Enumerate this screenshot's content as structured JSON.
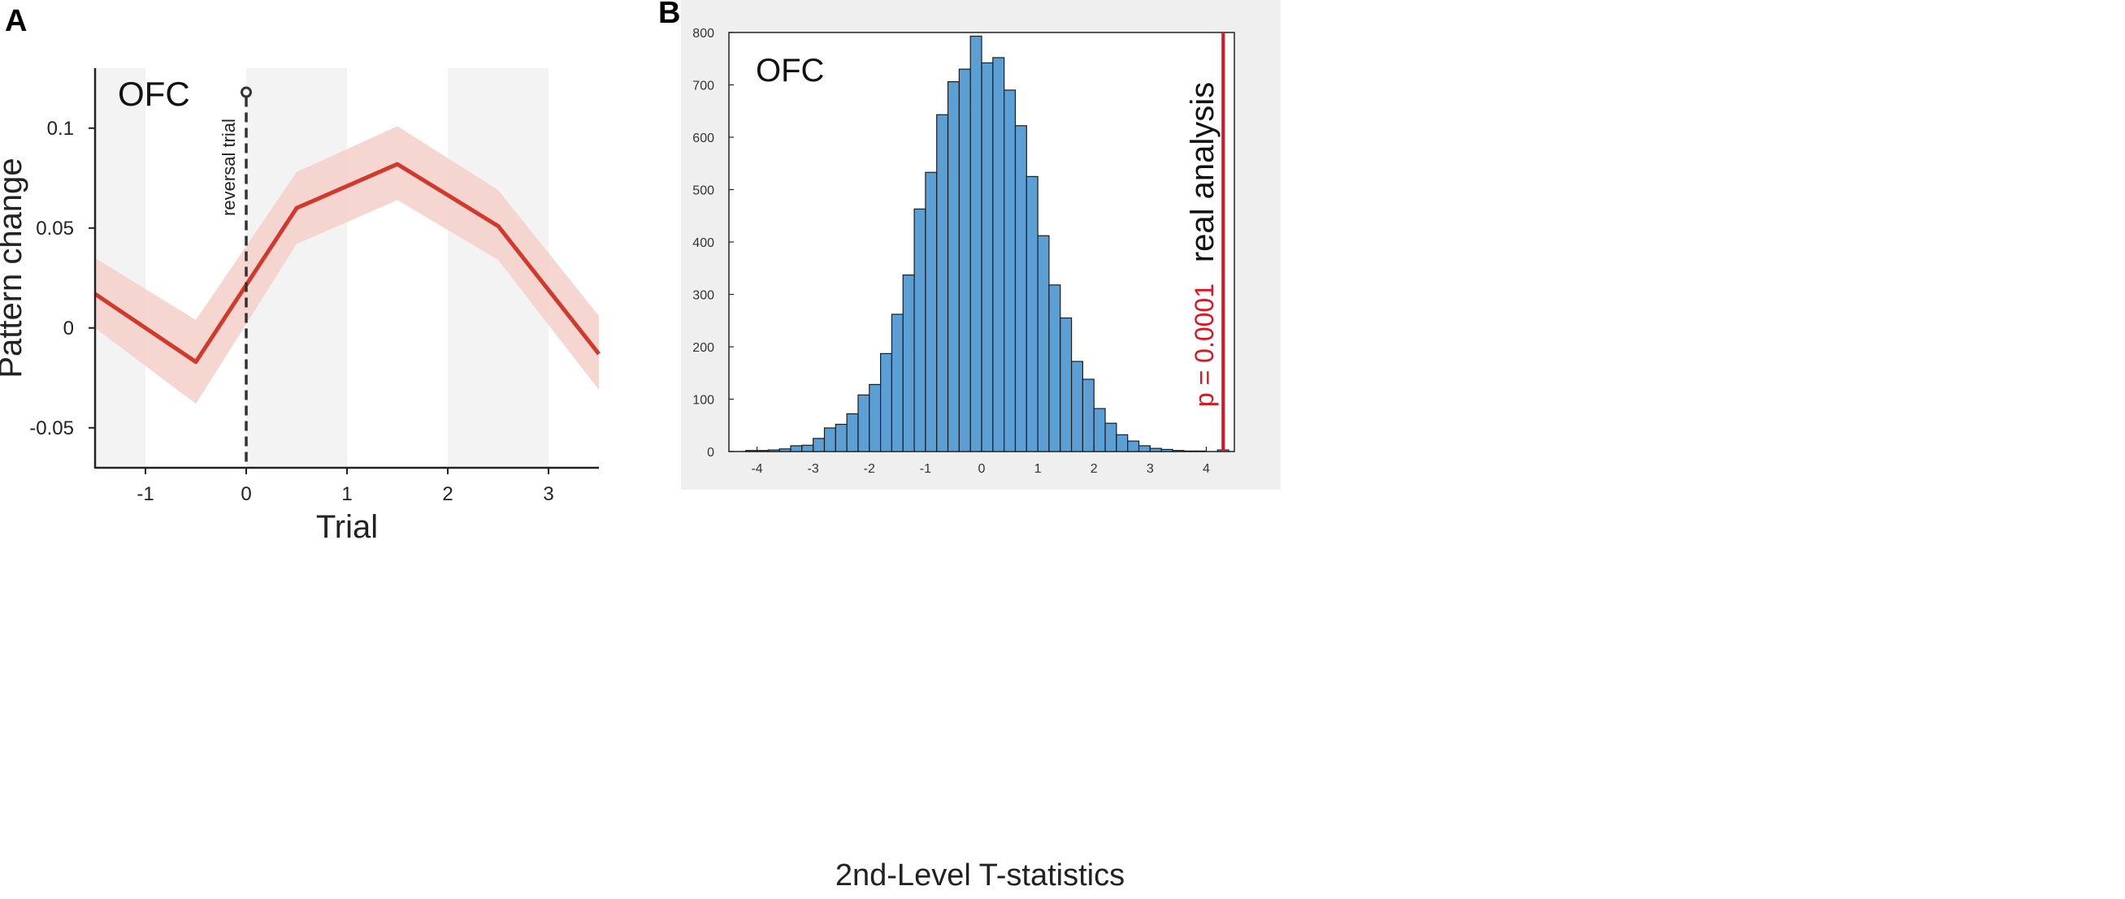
{
  "panels": {
    "a_label": "A",
    "b_label": "B"
  },
  "colors": {
    "line": "#d0392b",
    "ci_band": "#f5cfc9",
    "shade": "#f3f3f3",
    "bar_fill": "#5b9fd4",
    "bar_edge": "#1c1c1c",
    "real_line": "#e0141e",
    "panel_b_bg": "#efefef"
  },
  "chart_data": [
    {
      "type": "line",
      "panel": "A",
      "title": "",
      "annotation": "OFC",
      "xlabel": "Trial",
      "ylabel": "Pattern change",
      "xlim": [
        -1.5,
        3.5
      ],
      "ylim": [
        -0.07,
        0.13
      ],
      "xticks": [
        -1,
        0,
        1,
        2,
        3
      ],
      "xtick_labels": [
        "-1",
        "0",
        "1",
        "2",
        "3"
      ],
      "yticks": [
        -0.05,
        0,
        0.05,
        0.1
      ],
      "ytick_labels": [
        "-0.05",
        "0",
        "0.05",
        "0.1"
      ],
      "shaded_x_ranges": [
        [
          -1.5,
          -1
        ],
        [
          0,
          1
        ],
        [
          2,
          3
        ]
      ],
      "series": [
        {
          "name": "Pattern change",
          "x": [
            -1.5,
            -0.5,
            0.5,
            1.5,
            2.5,
            3.5
          ],
          "y": [
            0.017,
            -0.017,
            0.06,
            0.082,
            0.051,
            -0.013
          ],
          "upper": [
            0.035,
            0.004,
            0.078,
            0.101,
            0.069,
            0.006
          ],
          "lower": [
            0.0,
            -0.038,
            0.042,
            0.064,
            0.034,
            -0.031
          ]
        }
      ],
      "reversal": {
        "x": 0,
        "marker_y": 0.118,
        "label": "reversal trial"
      }
    },
    {
      "type": "bar",
      "panel": "B",
      "title": "",
      "annotation": "OFC",
      "xlabel": "2nd-Level T-statistics",
      "ylabel": "",
      "xlim": [
        -4.5,
        4.5
      ],
      "ylim": [
        0,
        800
      ],
      "xticks": [
        -4,
        -3,
        -2,
        -1,
        0,
        1,
        2,
        3,
        4
      ],
      "xtick_labels": [
        "-4",
        "-3",
        "-2",
        "-1",
        "0",
        "1",
        "2",
        "3",
        "4"
      ],
      "yticks": [
        0,
        100,
        200,
        300,
        400,
        500,
        600,
        700,
        800
      ],
      "ytick_labels": [
        "0",
        "100",
        "200",
        "300",
        "400",
        "500",
        "600",
        "700",
        "800"
      ],
      "bin_start": -4.2,
      "bin_width": 0.2,
      "counts": [
        2,
        2,
        3,
        5,
        11,
        12,
        25,
        45,
        52,
        72,
        108,
        128,
        187,
        262,
        337,
        463,
        533,
        643,
        706,
        730,
        793,
        742,
        752,
        690,
        622,
        525,
        412,
        318,
        255,
        172,
        138,
        82,
        54,
        32,
        20,
        11,
        6,
        4,
        2,
        1,
        1,
        0,
        3
      ],
      "real_analysis": {
        "x": 4.3,
        "label": "real analysis",
        "p_label": "p = 0.0001"
      }
    }
  ]
}
